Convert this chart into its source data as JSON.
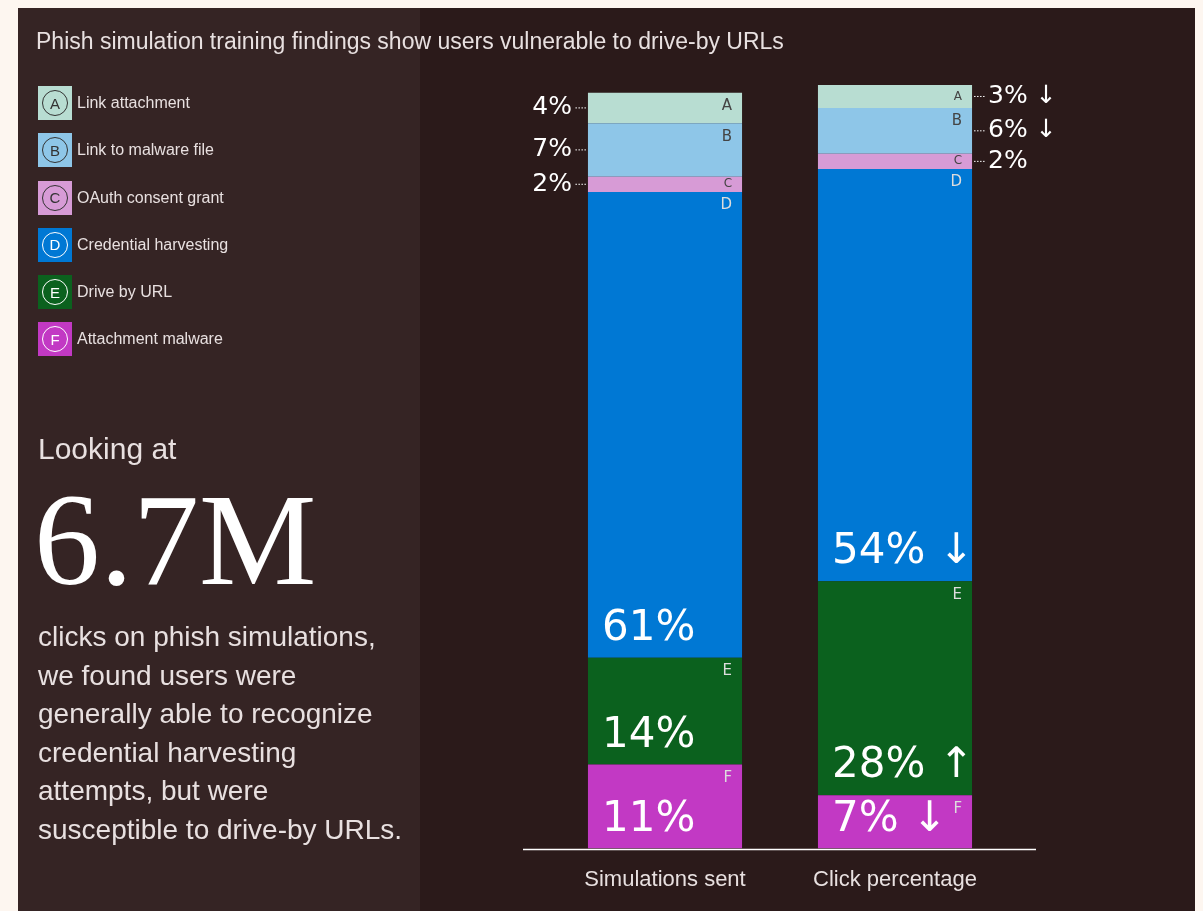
{
  "chart_data": {
    "type": "bar",
    "stacked": true,
    "title": "Phish simulation training findings show users vulnerable to drive-by URLs",
    "categories": [
      "Simulations sent",
      "Click percentage"
    ],
    "series": [
      {
        "name": "Attachment malware",
        "color": "#c239c4",
        "values": [
          11,
          7
        ],
        "value_labels": [
          "11%",
          "7% ↓"
        ]
      },
      {
        "name": "Drive  by URL",
        "color": "#0b611e",
        "values": [
          14,
          28
        ],
        "value_labels": [
          "14%",
          "28% ↑"
        ]
      },
      {
        "name": "Credential harvesting",
        "color": "#0078d4",
        "values": [
          61,
          54
        ],
        "value_labels": [
          "61%",
          "54% ↓"
        ]
      },
      {
        "name": "OAuth consent grant",
        "color": "#d79bd6",
        "values": [
          2,
          2
        ],
        "value_labels": [
          "2%",
          "2%"
        ]
      },
      {
        "name": "Link to malware file",
        "color": "#8ec6e8",
        "values": [
          7,
          6
        ],
        "value_labels": [
          "7%",
          "6% ↓"
        ]
      },
      {
        "name": "Link attachment",
        "color": "#b8ddd2",
        "values": [
          4,
          3
        ],
        "value_labels": [
          "4%",
          "3% ↓"
        ]
      }
    ],
    "annotations": [
      "A",
      "B",
      "C",
      "D",
      "E",
      "F",
      "Looking at",
      "6.7M",
      "clicks on phish simulations, we found users were generally able to recognize credential harvesting attempts, but were susceptible to drive-by URLs."
    ],
    "legend": "left"
  }
}
